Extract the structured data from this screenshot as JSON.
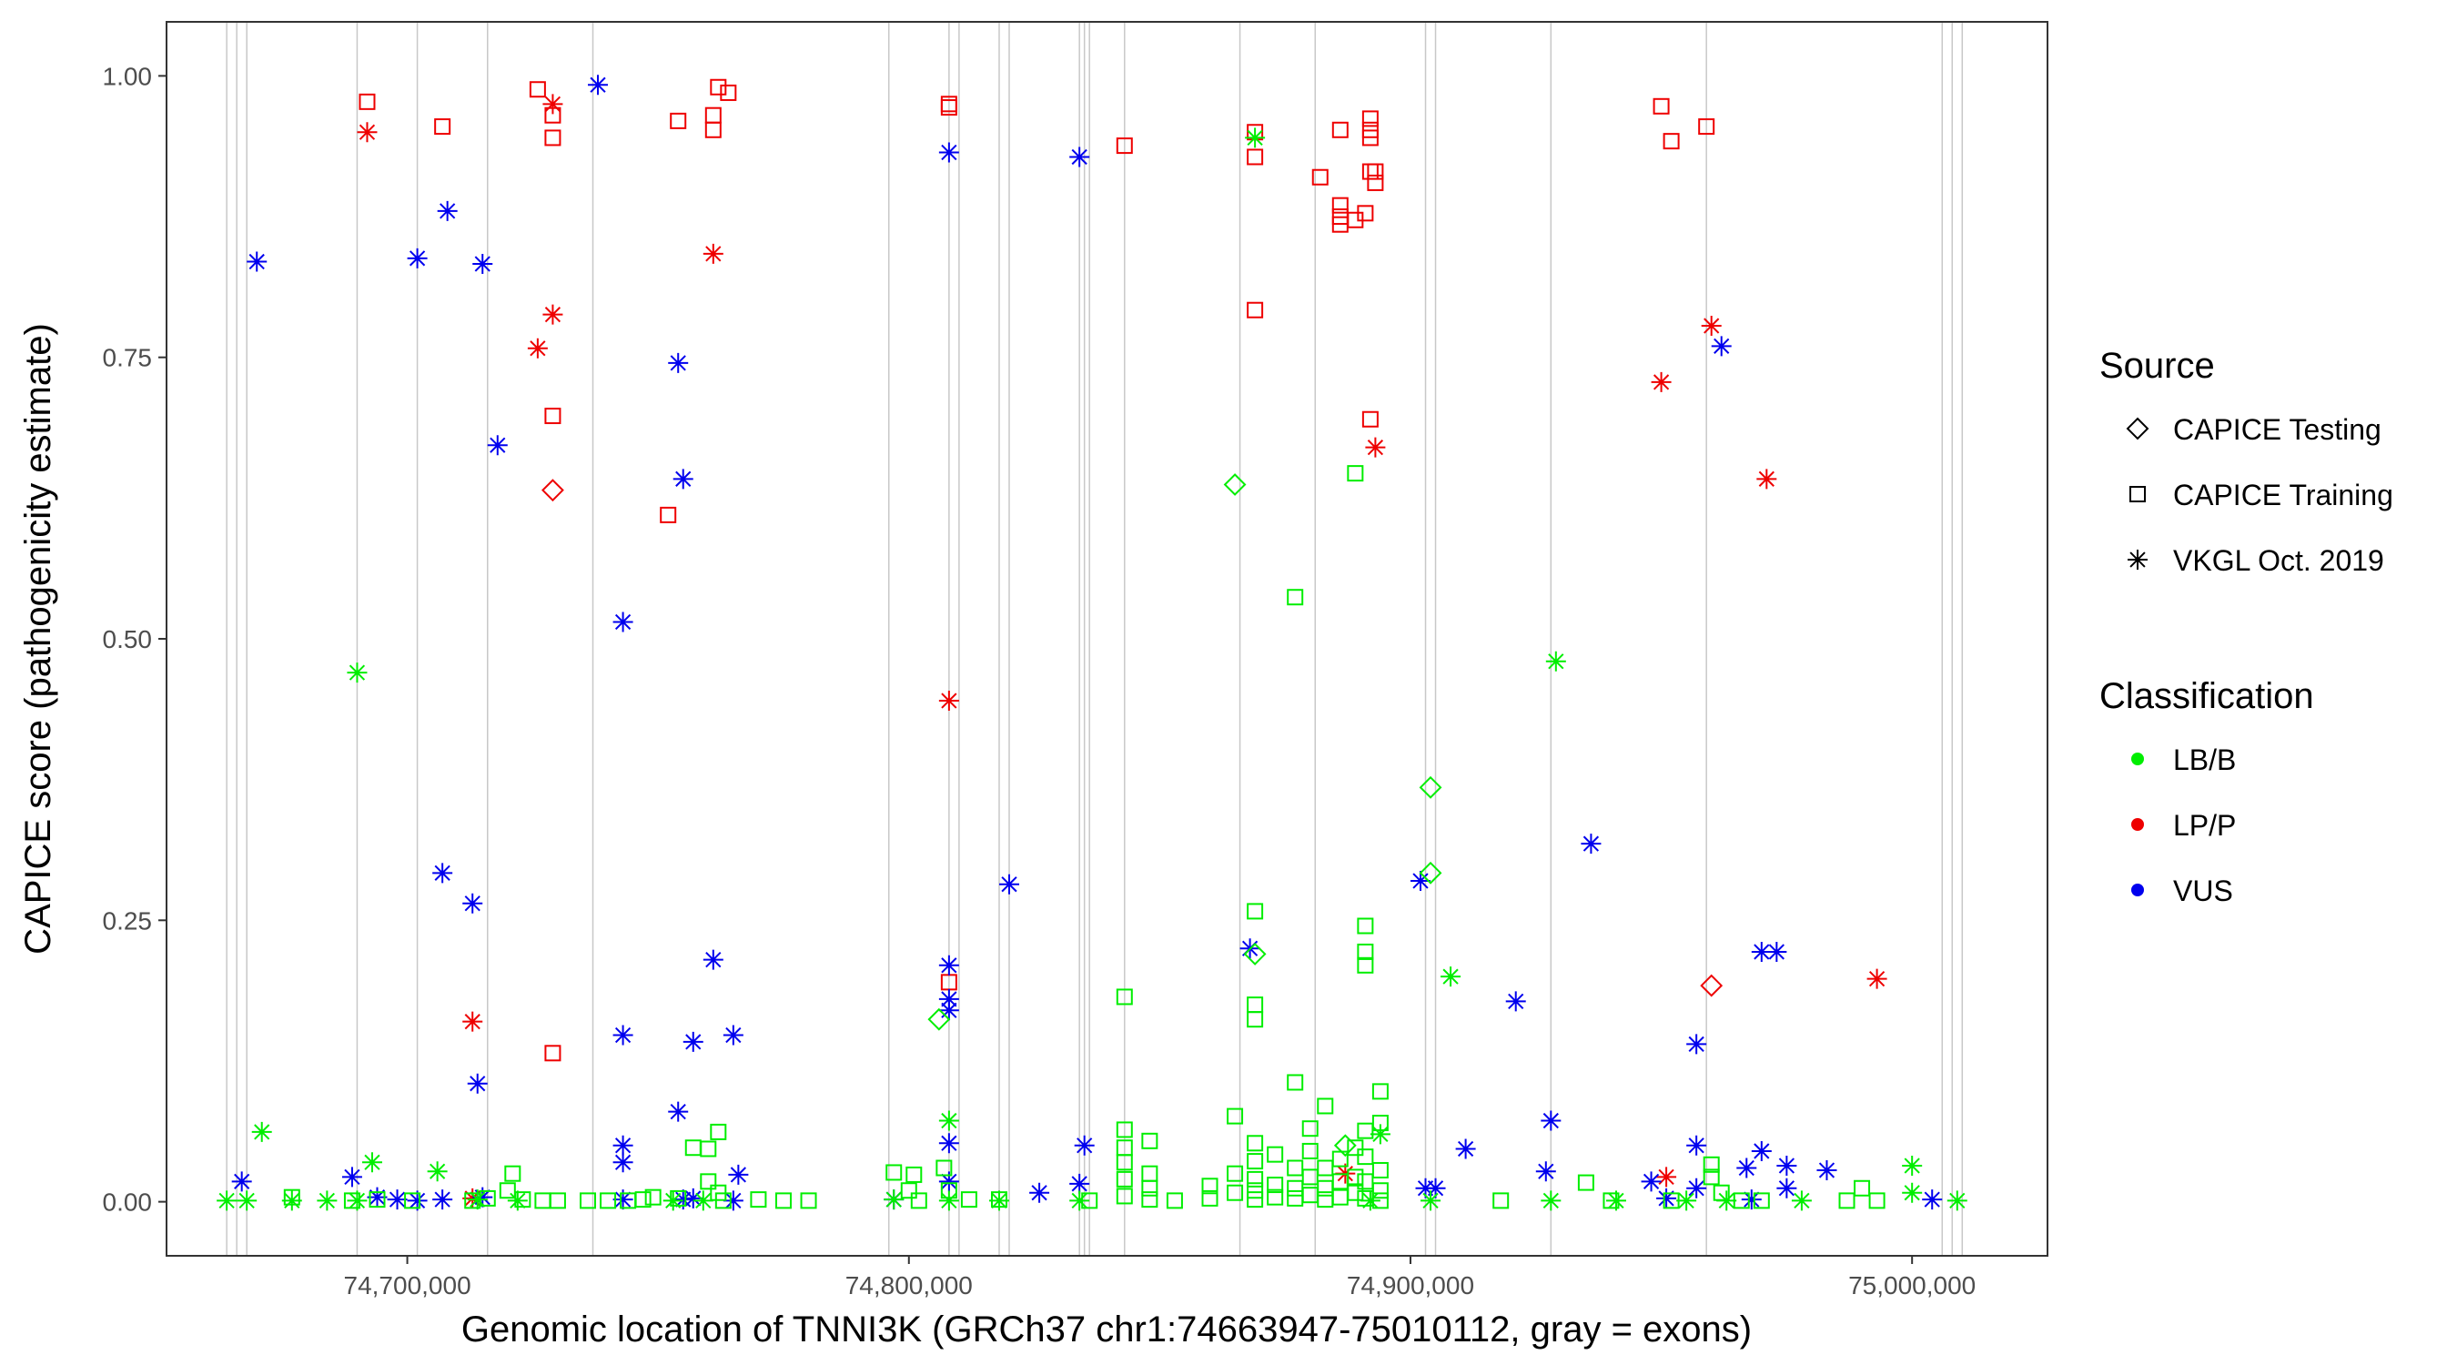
{
  "chart_data": {
    "type": "scatter",
    "title": "",
    "xlabel": "Genomic location of TNNI3K (GRCh37 chr1:74663947-75010112, gray = exons)",
    "ylabel": "CAPICE score (pathogenicity estimate)",
    "xlim": [
      74652000,
      75027000
    ],
    "ylim": [
      -0.048,
      1.048
    ],
    "xticks": [
      74700000,
      74800000,
      74900000,
      75000000
    ],
    "xtick_labels": [
      "74,700,000",
      "74,800,000",
      "74,900,000",
      "75,000,000"
    ],
    "yticks": [
      0,
      0.25,
      0.5,
      0.75,
      1
    ],
    "ytick_labels": [
      "0.00",
      "0.25",
      "0.50",
      "0.75",
      "1.00"
    ],
    "exons": [
      74664000,
      74666000,
      74668000,
      74690000,
      74702000,
      74716000,
      74737000,
      74796000,
      74808000,
      74810000,
      74818000,
      74820000,
      74834000,
      74835000,
      74836000,
      74843000,
      74866000,
      74881000,
      74903000,
      74905000,
      74928000,
      74959000,
      75006000,
      75008000,
      75010000
    ],
    "legend": {
      "source_title": "Source",
      "sources": [
        {
          "label": "CAPICE Testing",
          "shape": "diamond"
        },
        {
          "label": "CAPICE Training",
          "shape": "square"
        },
        {
          "label": "VKGL Oct. 2019",
          "shape": "asterisk"
        }
      ],
      "class_title": "Classification",
      "classes": [
        {
          "label": "LB/B",
          "color": "#00ee00"
        },
        {
          "label": "LP/P",
          "color": "#ee0000"
        },
        {
          "label": "VUS",
          "color": "#0000ee"
        }
      ]
    },
    "series": [
      {
        "source": "CAPICE Training",
        "class": "LP/P",
        "points": [
          [
            74692000,
            0.977
          ],
          [
            74707000,
            0.955
          ],
          [
            74726000,
            0.988
          ],
          [
            74729000,
            0.965
          ],
          [
            74729000,
            0.945
          ],
          [
            74729000,
            0.698
          ],
          [
            74729000,
            0.132
          ],
          [
            74752000,
            0.61
          ],
          [
            74754000,
            0.96
          ],
          [
            74761000,
            0.965
          ],
          [
            74761000,
            0.952
          ],
          [
            74762000,
            0.99
          ],
          [
            74764000,
            0.985
          ],
          [
            74808000,
            0.975
          ],
          [
            74808000,
            0.972
          ],
          [
            74808000,
            0.195
          ],
          [
            74843000,
            0.938
          ],
          [
            74869000,
            0.95
          ],
          [
            74869000,
            0.928
          ],
          [
            74869000,
            0.792
          ],
          [
            74882000,
            0.91
          ],
          [
            74886000,
            0.952
          ],
          [
            74886000,
            0.885
          ],
          [
            74886000,
            0.868
          ],
          [
            74886000,
            0.875
          ],
          [
            74889000,
            0.872
          ],
          [
            74892000,
            0.962
          ],
          [
            74892000,
            0.952
          ],
          [
            74892000,
            0.945
          ],
          [
            74892000,
            0.915
          ],
          [
            74891000,
            0.878
          ],
          [
            74892000,
            0.695
          ],
          [
            74893000,
            0.915
          ],
          [
            74893000,
            0.905
          ],
          [
            74950000,
            0.973
          ],
          [
            74952000,
            0.942
          ],
          [
            74959000,
            0.955
          ]
        ]
      },
      {
        "source": "CAPICE Testing",
        "class": "LP/P",
        "points": [
          [
            74729000,
            0.632
          ],
          [
            74960000,
            0.192
          ]
        ]
      },
      {
        "source": "VKGL Oct. 2019",
        "class": "LP/P",
        "points": [
          [
            74692000,
            0.95
          ],
          [
            74729000,
            0.975
          ],
          [
            74729000,
            0.788
          ],
          [
            74726000,
            0.758
          ],
          [
            74761000,
            0.842
          ],
          [
            74713000,
            0.16
          ],
          [
            74713000,
            0.003
          ],
          [
            74808000,
            0.445
          ],
          [
            74893000,
            0.67
          ],
          [
            74887000,
            0.025
          ],
          [
            74951000,
            0.022
          ],
          [
            74950000,
            0.728
          ],
          [
            74960000,
            0.778
          ],
          [
            74971000,
            0.642
          ],
          [
            74993000,
            0.198
          ]
        ]
      },
      {
        "source": "VKGL Oct. 2019",
        "class": "VUS",
        "points": [
          [
            74670000,
            0.835
          ],
          [
            74702000,
            0.838
          ],
          [
            74708000,
            0.88
          ],
          [
            74715000,
            0.833
          ],
          [
            74738000,
            0.992
          ],
          [
            74754000,
            0.745
          ],
          [
            74718000,
            0.672
          ],
          [
            74755000,
            0.642
          ],
          [
            74743000,
            0.515
          ],
          [
            74707000,
            0.292
          ],
          [
            74713000,
            0.265
          ],
          [
            74761000,
            0.215
          ],
          [
            74743000,
            0.148
          ],
          [
            74757000,
            0.142
          ],
          [
            74765000,
            0.148
          ],
          [
            74714000,
            0.105
          ],
          [
            74754000,
            0.08
          ],
          [
            74743000,
            0.05
          ],
          [
            74743000,
            0.035
          ],
          [
            74667000,
            0.018
          ],
          [
            74689000,
            0.022
          ],
          [
            74694000,
            0.004
          ],
          [
            74698000,
            0.002
          ],
          [
            74702000,
            0.001
          ],
          [
            74707000,
            0.002
          ],
          [
            74715000,
            0.004
          ],
          [
            74743000,
            0.002
          ],
          [
            74755000,
            0.002
          ],
          [
            74757000,
            0.003
          ],
          [
            74765000,
            0.001
          ],
          [
            74766000,
            0.024
          ],
          [
            74808000,
            0.932
          ],
          [
            74808000,
            0.21
          ],
          [
            74808000,
            0.18
          ],
          [
            74808000,
            0.17
          ],
          [
            74808000,
            0.052
          ],
          [
            74808000,
            0.018
          ],
          [
            74820000,
            0.282
          ],
          [
            74826000,
            0.008
          ],
          [
            74834000,
            0.928
          ],
          [
            74835000,
            0.05
          ],
          [
            74834000,
            0.016
          ],
          [
            74797000,
            0.002
          ],
          [
            74868000,
            0.225
          ],
          [
            74902000,
            0.285
          ],
          [
            74903000,
            0.012
          ],
          [
            74905000,
            0.012
          ],
          [
            74911000,
            0.047
          ],
          [
            74921000,
            0.178
          ],
          [
            74928000,
            0.072
          ],
          [
            74927000,
            0.027
          ],
          [
            74936000,
            0.318
          ],
          [
            74957000,
            0.14
          ],
          [
            74957000,
            0.05
          ],
          [
            74957000,
            0.012
          ],
          [
            74948000,
            0.018
          ],
          [
            74951000,
            0.003
          ],
          [
            74962000,
            0.76
          ],
          [
            74967000,
            0.03
          ],
          [
            74970000,
            0.222
          ],
          [
            74973000,
            0.222
          ],
          [
            74970000,
            0.045
          ],
          [
            74975000,
            0.032
          ],
          [
            74975000,
            0.012
          ],
          [
            74968000,
            0.002
          ],
          [
            74983000,
            0.028
          ],
          [
            75004000,
            0.002
          ]
        ]
      },
      {
        "source": "VKGL Oct. 2019",
        "class": "LB/B",
        "points": [
          [
            74671000,
            0.062
          ],
          [
            74690000,
            0.47
          ],
          [
            74693000,
            0.035
          ],
          [
            74706000,
            0.027
          ],
          [
            74664000,
            0.001
          ],
          [
            74668000,
            0.001
          ],
          [
            74677000,
            0.001
          ],
          [
            74684000,
            0.001
          ],
          [
            74690000,
            0.001
          ],
          [
            74714000,
            0.002
          ],
          [
            74722000,
            0.001
          ],
          [
            74753000,
            0.001
          ],
          [
            74759000,
            0.001
          ],
          [
            74797000,
            0.002
          ],
          [
            74808000,
            0.072
          ],
          [
            74808000,
            0.001
          ],
          [
            74818000,
            0.001
          ],
          [
            74834000,
            0.001
          ],
          [
            74869000,
            0.945
          ],
          [
            74894000,
            0.06
          ],
          [
            74892000,
            0.001
          ],
          [
            74908000,
            0.2
          ],
          [
            74904000,
            0.001
          ],
          [
            74929000,
            0.48
          ],
          [
            74928000,
            0.001
          ],
          [
            74941000,
            0.001
          ],
          [
            74955000,
            0.001
          ],
          [
            74963000,
            0.001
          ],
          [
            74978000,
            0.001
          ],
          [
            75000000,
            0.032
          ],
          [
            75000000,
            0.008
          ],
          [
            75009000,
            0.001
          ]
        ]
      },
      {
        "source": "CAPICE Testing",
        "class": "LB/B",
        "points": [
          [
            74806000,
            0.162
          ],
          [
            74865000,
            0.637
          ],
          [
            74869000,
            0.22
          ],
          [
            74904000,
            0.368
          ],
          [
            74904000,
            0.292
          ],
          [
            74887000,
            0.05
          ]
        ]
      },
      {
        "source": "CAPICE Training",
        "class": "LB/B",
        "points": [
          [
            74677000,
            0.004
          ],
          [
            74689000,
            0.001
          ],
          [
            74694000,
            0.002
          ],
          [
            74701000,
            0.001
          ],
          [
            74713000,
            0.001
          ],
          [
            74716000,
            0.003
          ],
          [
            74720000,
            0.01
          ],
          [
            74721000,
            0.025
          ],
          [
            74723000,
            0.002
          ],
          [
            74727000,
            0.001
          ],
          [
            74730000,
            0.001
          ],
          [
            74736000,
            0.001
          ],
          [
            74740000,
            0.001
          ],
          [
            74744000,
            0.001
          ],
          [
            74747000,
            0.002
          ],
          [
            74749000,
            0.004
          ],
          [
            74754000,
            0.003
          ],
          [
            74757000,
            0.048
          ],
          [
            74760000,
            0.047
          ],
          [
            74762000,
            0.062
          ],
          [
            74760000,
            0.018
          ],
          [
            74762000,
            0.008
          ],
          [
            74763000,
            0.001
          ],
          [
            74770000,
            0.002
          ],
          [
            74775000,
            0.001
          ],
          [
            74780000,
            0.001
          ],
          [
            74797000,
            0.026
          ],
          [
            74801000,
            0.024
          ],
          [
            74800000,
            0.01
          ],
          [
            74802000,
            0.001
          ],
          [
            74807000,
            0.03
          ],
          [
            74808000,
            0.01
          ],
          [
            74812000,
            0.002
          ],
          [
            74818000,
            0.002
          ],
          [
            74836000,
            0.001
          ],
          [
            74843000,
            0.182
          ],
          [
            74843000,
            0.064
          ],
          [
            74843000,
            0.048
          ],
          [
            74843000,
            0.035
          ],
          [
            74843000,
            0.02
          ],
          [
            74843000,
            0.005
          ],
          [
            74848000,
            0.054
          ],
          [
            74848000,
            0.025
          ],
          [
            74848000,
            0.012
          ],
          [
            74848000,
            0.002
          ],
          [
            74853000,
            0.001
          ],
          [
            74860000,
            0.014
          ],
          [
            74860000,
            0.003
          ],
          [
            74865000,
            0.076
          ],
          [
            74865000,
            0.025
          ],
          [
            74865000,
            0.008
          ],
          [
            74869000,
            0.258
          ],
          [
            74869000,
            0.175
          ],
          [
            74869000,
            0.162
          ],
          [
            74869000,
            0.052
          ],
          [
            74869000,
            0.036
          ],
          [
            74869000,
            0.02
          ],
          [
            74869000,
            0.01
          ],
          [
            74869000,
            0.002
          ],
          [
            74873000,
            0.042
          ],
          [
            74873000,
            0.015
          ],
          [
            74873000,
            0.004
          ],
          [
            74877000,
            0.537
          ],
          [
            74877000,
            0.106
          ],
          [
            74877000,
            0.03
          ],
          [
            74877000,
            0.012
          ],
          [
            74877000,
            0.003
          ],
          [
            74880000,
            0.065
          ],
          [
            74880000,
            0.045
          ],
          [
            74880000,
            0.022
          ],
          [
            74880000,
            0.006
          ],
          [
            74883000,
            0.085
          ],
          [
            74883000,
            0.03
          ],
          [
            74883000,
            0.012
          ],
          [
            74883000,
            0.002
          ],
          [
            74886000,
            0.038
          ],
          [
            74886000,
            0.018
          ],
          [
            74886000,
            0.004
          ],
          [
            74889000,
            0.647
          ],
          [
            74889000,
            0.048
          ],
          [
            74889000,
            0.022
          ],
          [
            74889000,
            0.008
          ],
          [
            74891000,
            0.245
          ],
          [
            74891000,
            0.222
          ],
          [
            74891000,
            0.21
          ],
          [
            74891000,
            0.063
          ],
          [
            74891000,
            0.04
          ],
          [
            74891000,
            0.018
          ],
          [
            74891000,
            0.003
          ],
          [
            74894000,
            0.098
          ],
          [
            74894000,
            0.07
          ],
          [
            74894000,
            0.028
          ],
          [
            74894000,
            0.01
          ],
          [
            74894000,
            0.001
          ],
          [
            74918000,
            0.001
          ],
          [
            74935000,
            0.017
          ],
          [
            74940000,
            0.001
          ],
          [
            74952000,
            0.001
          ],
          [
            74960000,
            0.033
          ],
          [
            74960000,
            0.022
          ],
          [
            74962000,
            0.008
          ],
          [
            74966000,
            0.001
          ],
          [
            74970000,
            0.001
          ],
          [
            74987000,
            0.001
          ],
          [
            74990000,
            0.012
          ],
          [
            74993000,
            0.001
          ]
        ]
      }
    ]
  }
}
